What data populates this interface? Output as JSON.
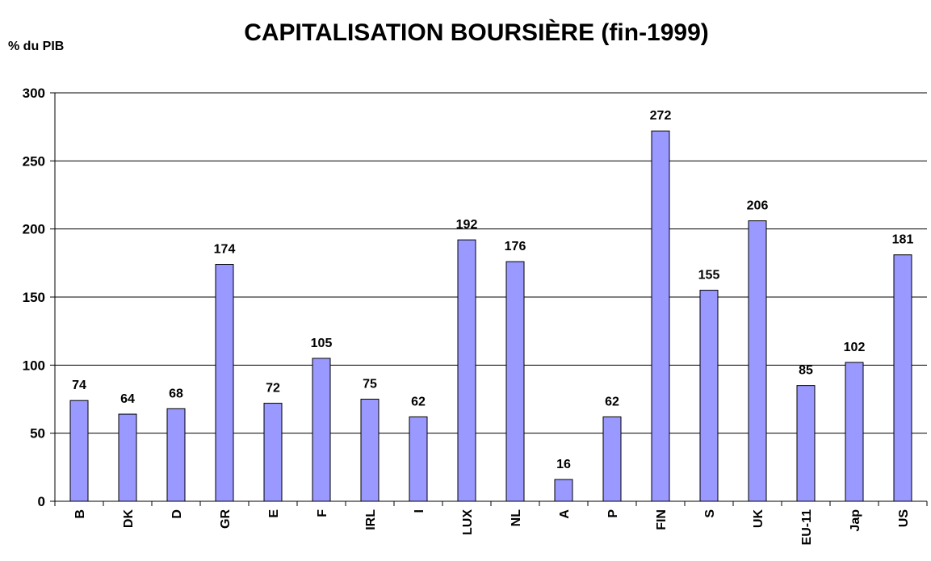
{
  "chart_data": {
    "type": "bar",
    "title": "CAPITALISATION BOURSIÈRE (fin-1999)",
    "y_label": "% du PIB",
    "categories": [
      "B",
      "DK",
      "D",
      "GR",
      "E",
      "F",
      "IRL",
      "I",
      "LUX",
      "NL",
      "A",
      "P",
      "FIN",
      "S",
      "UK",
      "EU-11",
      "Jap",
      "US"
    ],
    "values": [
      74,
      64,
      68,
      174,
      72,
      105,
      75,
      62,
      192,
      176,
      16,
      62,
      272,
      155,
      206,
      85,
      102,
      181
    ],
    "color": "#9999ff",
    "ylim": [
      0,
      300
    ],
    "yticks": [
      0,
      50,
      100,
      150,
      200,
      250,
      300
    ],
    "grid": true
  }
}
